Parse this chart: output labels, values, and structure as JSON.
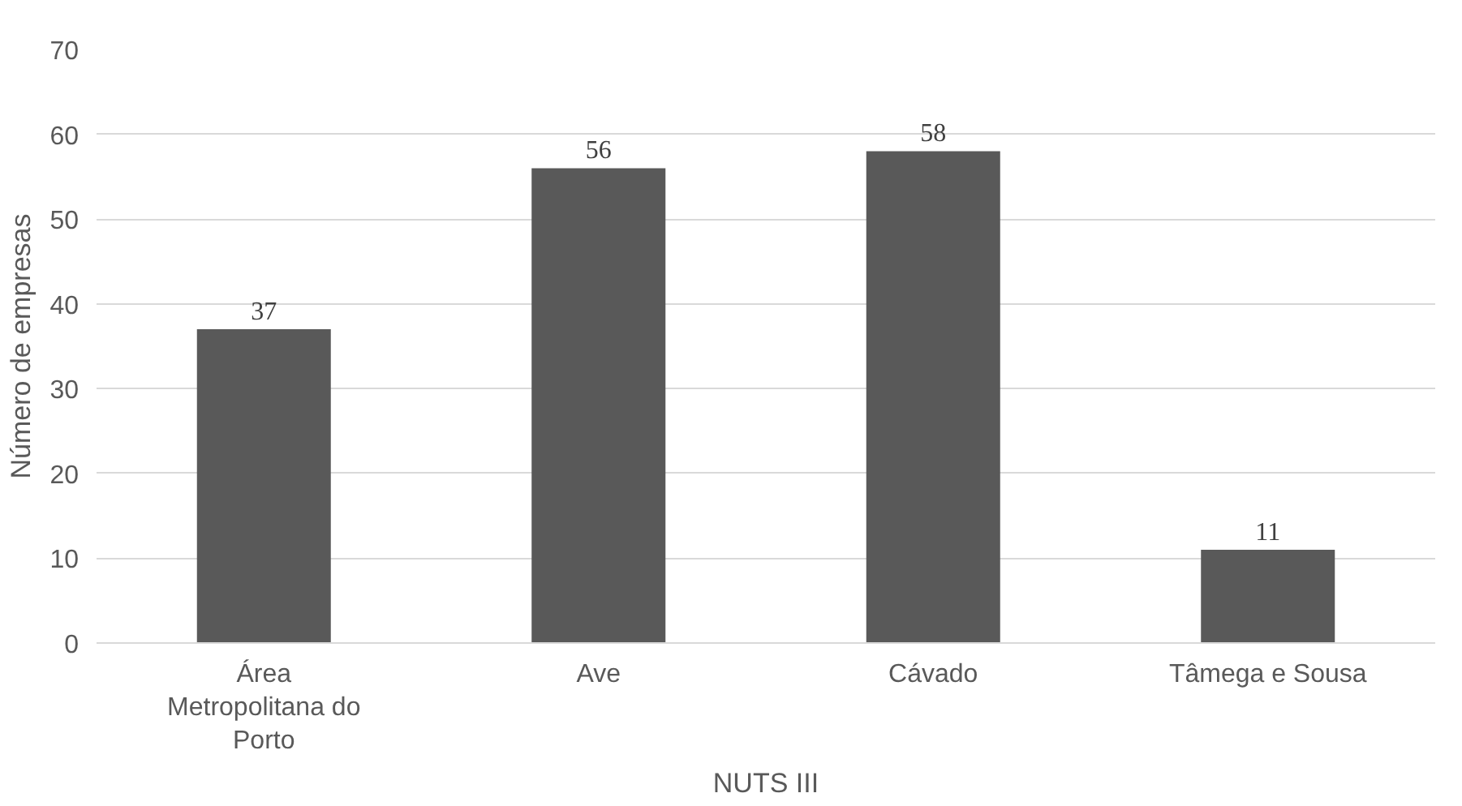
{
  "chart_data": {
    "type": "bar",
    "xlabel": "NUTS III",
    "ylabel": "Número de empresas",
    "categories": [
      "Área Metropolitana do Porto",
      "Ave",
      "Cávado",
      "Tâmega e Sousa"
    ],
    "values": [
      37,
      56,
      58,
      11
    ],
    "color": "#595959",
    "ylim": [
      0,
      70
    ],
    "yticks": [
      0,
      10,
      20,
      30,
      40,
      50,
      60,
      70
    ],
    "grid": "y",
    "data_labels": true
  }
}
